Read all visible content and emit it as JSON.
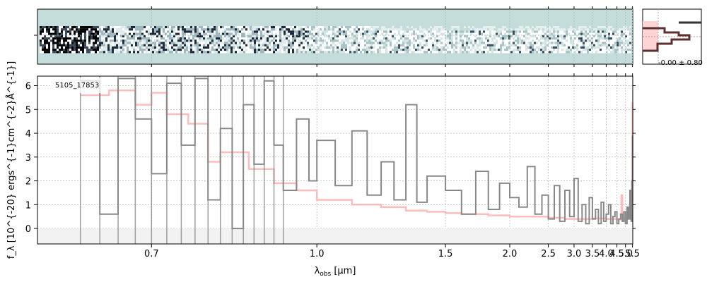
{
  "chart_data": {
    "type": "line",
    "object_label": "5105_17853",
    "xlabel_base": "λ",
    "xlabel_sub": "obs",
    "xlabel_unit": " [μm]",
    "ylabel": "f_λ [10^{-20} ergs^{-1}cm^{-2}Å^{-1}]",
    "xlim": [
      0.58,
      5.52
    ],
    "ylim": [
      -0.65,
      6.4
    ],
    "x_scale": "reciprocal",
    "xticks": [
      0.7,
      1.0,
      1.5,
      2.0,
      2.5,
      3.0,
      3.5,
      4.0,
      4.5,
      5.0,
      5.5
    ],
    "xtick_labels": [
      "0.7",
      "1.0",
      "1.5",
      "2.0",
      "2.5",
      "3.0",
      "3.5",
      "4.0",
      "4.5",
      "5.0",
      "5.5"
    ],
    "yticks": [
      0,
      1,
      2,
      3,
      4,
      5,
      6
    ],
    "ytick_labels": [
      "0",
      "1",
      "2",
      "3",
      "4",
      "5",
      "6"
    ],
    "grid": true,
    "colors": {
      "data": "#888888",
      "model": "#ffb0b0",
      "model_dark": "#c06060",
      "image_bg": "#c4dcda"
    },
    "series": [
      {
        "name": "",
        "style": "steps",
        "x": [
          0.62,
          0.64,
          0.66,
          0.68,
          0.7,
          0.72,
          0.74,
          0.76,
          0.78,
          0.8,
          0.82,
          0.84,
          0.86,
          0.88,
          0.9,
          0.92,
          0.95,
          0.98,
          1.0,
          1.05,
          1.1,
          1.15,
          1.2,
          1.25,
          1.3,
          1.35,
          1.4,
          1.5,
          1.6,
          1.7,
          1.8,
          1.9,
          2.0,
          2.1,
          2.2,
          2.3,
          2.4,
          2.5,
          2.6,
          2.7,
          2.8,
          2.9,
          3.0,
          3.1,
          3.2,
          3.3,
          3.4,
          3.5,
          3.6,
          3.7,
          3.8,
          3.9,
          4.0,
          4.1,
          4.2,
          4.3,
          4.4,
          4.5,
          4.6,
          4.7,
          4.8,
          4.9,
          5.0,
          5.1,
          5.2,
          5.3,
          5.4,
          5.45,
          5.5
        ],
        "y": [
          6.2,
          0.6,
          6.3,
          4.6,
          2.3,
          6.1,
          3.5,
          6.3,
          1.2,
          4.2,
          0.0,
          5.2,
          2.7,
          6.2,
          3.5,
          1.6,
          4.6,
          2.0,
          3.7,
          1.8,
          4.1,
          1.4,
          2.8,
          1.2,
          5.2,
          1.1,
          2.2,
          1.6,
          0.6,
          2.4,
          0.8,
          1.9,
          1.3,
          0.9,
          2.6,
          0.6,
          1.4,
          0.4,
          1.8,
          0.3,
          1.6,
          0.5,
          2.1,
          0.3,
          1.0,
          0.2,
          1.3,
          0.4,
          0.8,
          0.2,
          1.1,
          0.3,
          0.6,
          1.0,
          0.2,
          0.5,
          0.7,
          0.2,
          0.4,
          0.6,
          0.3,
          0.7,
          0.2,
          0.9,
          0.4,
          1.6,
          0.3,
          2.0,
          3.9
        ]
      },
      {
        "name": "",
        "style": "steps",
        "x": [
          0.62,
          0.65,
          0.68,
          0.7,
          0.72,
          0.75,
          0.78,
          0.8,
          0.85,
          0.9,
          0.95,
          1.0,
          1.1,
          1.2,
          1.3,
          1.4,
          1.5,
          1.6,
          1.8,
          2.0,
          2.2,
          2.5,
          2.8,
          3.0,
          3.5,
          4.0,
          4.5,
          4.75,
          4.8,
          5.0,
          5.2,
          5.3,
          5.4,
          5.45,
          5.5
        ],
        "y": [
          5.6,
          5.8,
          5.2,
          5.7,
          4.8,
          4.4,
          2.8,
          3.2,
          2.5,
          1.9,
          1.6,
          1.2,
          1.0,
          0.9,
          0.75,
          0.7,
          0.65,
          0.6,
          0.55,
          0.5,
          0.5,
          0.45,
          0.4,
          0.4,
          0.42,
          0.4,
          0.38,
          1.4,
          0.4,
          0.42,
          0.5,
          0.6,
          0.8,
          1.2,
          5.3
        ]
      }
    ],
    "side_panel": {
      "label": "-0.00 ± 0.80"
    }
  }
}
